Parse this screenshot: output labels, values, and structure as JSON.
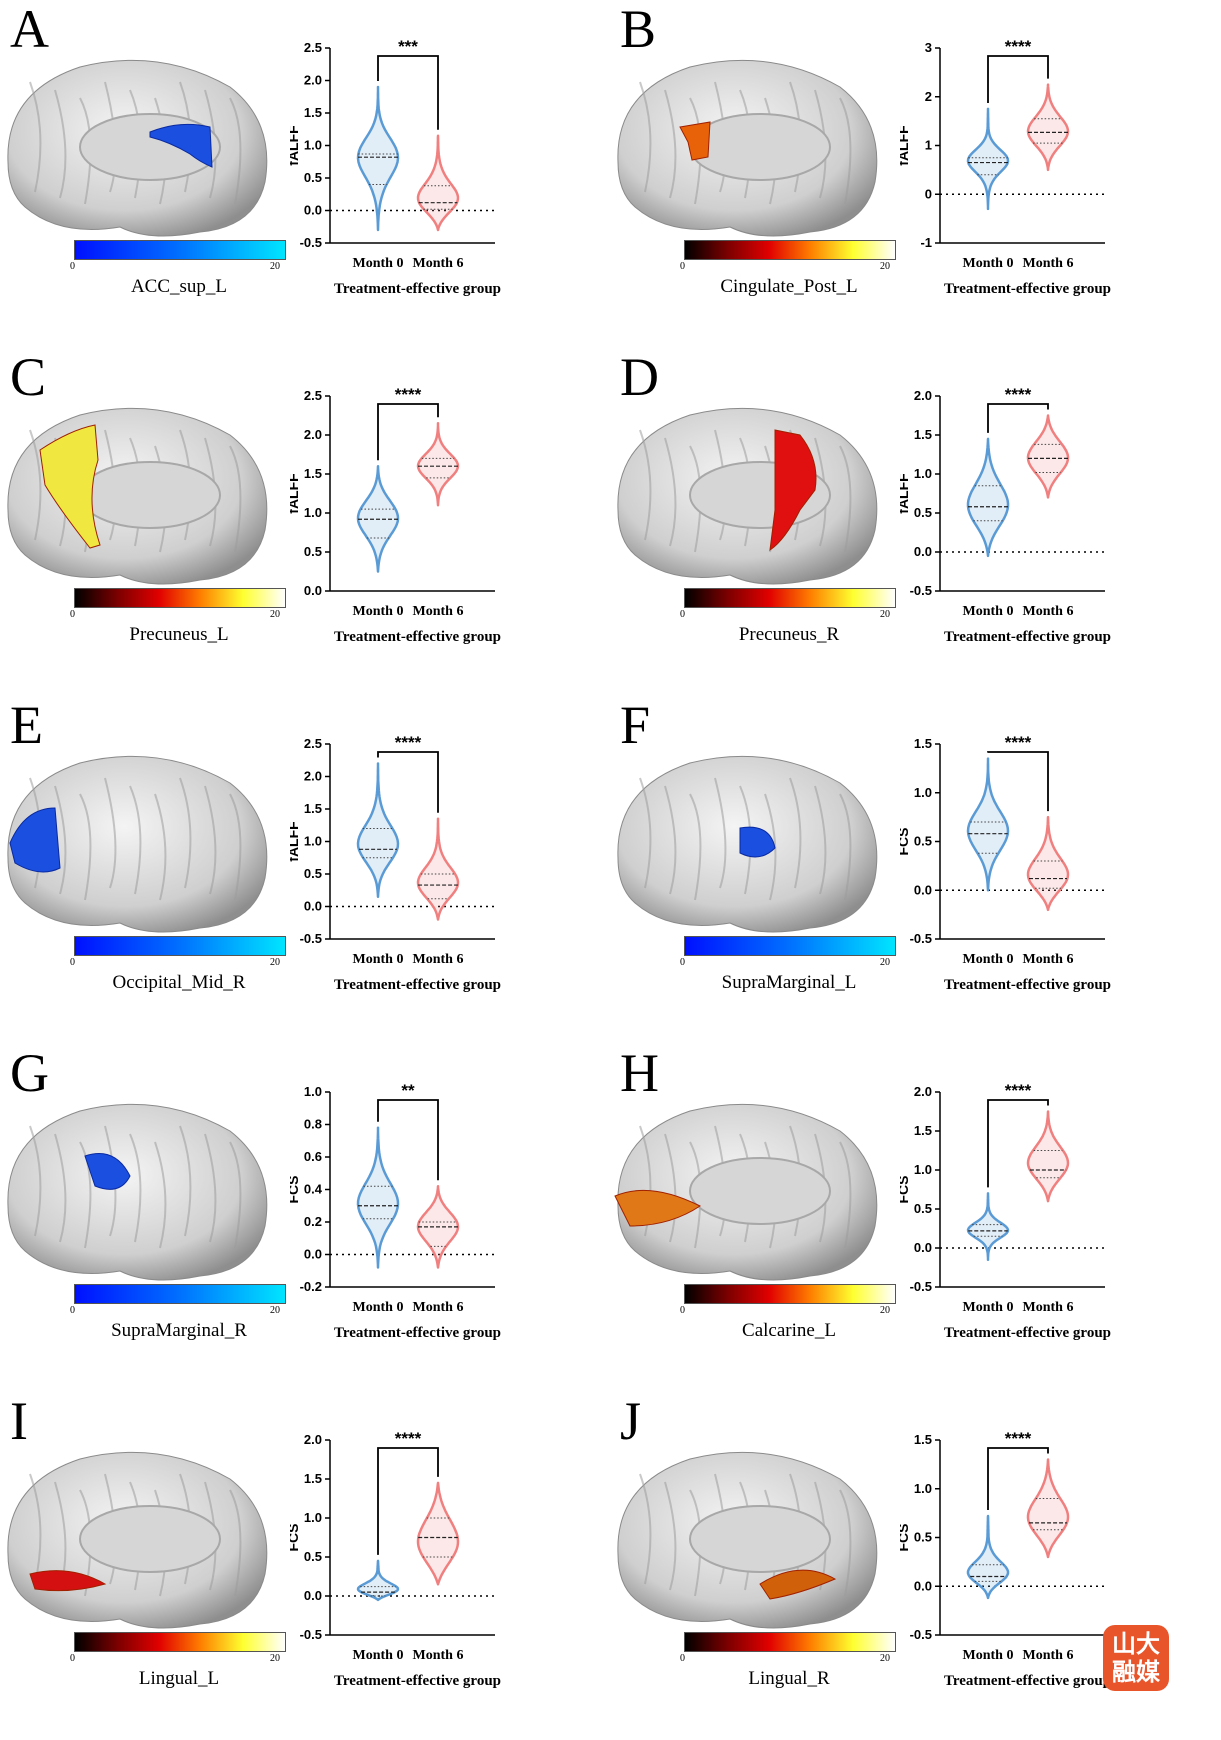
{
  "chart_data": [
    {
      "panel": "A",
      "type": "violin",
      "region_label": "ACC_sup_L",
      "colorbar": {
        "min": "0",
        "max": "20",
        "scheme": "blue"
      },
      "ylabel": "fALFF",
      "xlabel": "Treatment-effective group",
      "categories": [
        "Month 0",
        "Month 6"
      ],
      "yticks": [
        "-0.5",
        "0.0",
        "0.5",
        "1.0",
        "1.5",
        "2.0",
        "2.5"
      ],
      "ylim": [
        -0.5,
        2.5
      ],
      "significance": "***",
      "series": [
        {
          "median": 0.82,
          "q1": 0.4,
          "q3": 0.87,
          "min": -0.3,
          "max": 1.9,
          "mode": 0.85
        },
        {
          "median": 0.12,
          "q1": 0.02,
          "q3": 0.38,
          "min": -0.3,
          "max": 1.15,
          "mode": 0.1
        }
      ]
    },
    {
      "panel": "B",
      "type": "violin",
      "region_label": "Cingulate_Post_L",
      "colorbar": {
        "min": "0",
        "max": "20",
        "scheme": "hot"
      },
      "ylabel": "fALFF",
      "xlabel": "Treatment-effective group",
      "categories": [
        "Month 0",
        "Month 6"
      ],
      "yticks": [
        "-1",
        "0",
        "1",
        "2",
        "3"
      ],
      "ylim": [
        -1,
        3
      ],
      "significance": "****",
      "series": [
        {
          "median": 0.65,
          "q1": 0.4,
          "q3": 0.75,
          "min": -0.3,
          "max": 1.75,
          "mode": 0.7
        },
        {
          "median": 1.27,
          "q1": 1.05,
          "q3": 1.55,
          "min": 0.5,
          "max": 2.25,
          "mode": 1.25
        }
      ]
    },
    {
      "panel": "C",
      "type": "violin",
      "region_label": "Precuneus_L",
      "colorbar": {
        "min": "0",
        "max": "20",
        "scheme": "hot"
      },
      "ylabel": "fALFF",
      "xlabel": "Treatment-effective group",
      "categories": [
        "Month 0",
        "Month 6"
      ],
      "yticks": [
        "0.0",
        "0.5",
        "1.0",
        "1.5",
        "2.0",
        "2.5"
      ],
      "ylim": [
        0,
        2.5
      ],
      "significance": "****",
      "series": [
        {
          "median": 0.92,
          "q1": 0.68,
          "q3": 1.05,
          "min": 0.25,
          "max": 1.6,
          "mode": 0.95
        },
        {
          "median": 1.6,
          "q1": 1.45,
          "q3": 1.7,
          "min": 1.1,
          "max": 2.15,
          "mode": 1.6
        }
      ]
    },
    {
      "panel": "D",
      "type": "violin",
      "region_label": "Precuneus_R",
      "colorbar": {
        "min": "0",
        "max": "20",
        "scheme": "hot"
      },
      "ylabel": "fALFF",
      "xlabel": "Treatment-effective group",
      "categories": [
        "Month 0",
        "Month 6"
      ],
      "yticks": [
        "-0.5",
        "0.0",
        "0.5",
        "1.0",
        "1.5",
        "2.0"
      ],
      "ylim": [
        -0.5,
        2
      ],
      "significance": "****",
      "series": [
        {
          "median": 0.58,
          "q1": 0.4,
          "q3": 0.85,
          "min": -0.05,
          "max": 1.45,
          "mode": 0.55
        },
        {
          "median": 1.2,
          "q1": 1.02,
          "q3": 1.38,
          "min": 0.7,
          "max": 1.75,
          "mode": 1.2
        }
      ]
    },
    {
      "panel": "E",
      "type": "violin",
      "region_label": "Occipital_Mid_R",
      "colorbar": {
        "min": "0",
        "max": "20",
        "scheme": "blue"
      },
      "ylabel": "fALFF",
      "xlabel": "Treatment-effective group",
      "categories": [
        "Month 0",
        "Month 6"
      ],
      "yticks": [
        "-0.5",
        "0.0",
        "0.5",
        "1.0",
        "1.5",
        "2.0",
        "2.5"
      ],
      "ylim": [
        -0.5,
        2.5
      ],
      "significance": "****",
      "series": [
        {
          "median": 0.88,
          "q1": 0.75,
          "q3": 1.2,
          "min": 0.15,
          "max": 2.2,
          "mode": 0.9
        },
        {
          "median": 0.33,
          "q1": 0.12,
          "q3": 0.5,
          "min": -0.2,
          "max": 1.35,
          "mode": 0.3
        }
      ]
    },
    {
      "panel": "F",
      "type": "violin",
      "region_label": "SupraMarginal_L",
      "colorbar": {
        "min": "0",
        "max": "20",
        "scheme": "blue"
      },
      "ylabel": "FCS",
      "xlabel": "Treatment-effective group",
      "categories": [
        "Month 0",
        "Month 6"
      ],
      "yticks": [
        "-0.5",
        "0.0",
        "0.5",
        "1.0",
        "1.5"
      ],
      "ylim": [
        -0.5,
        1.5
      ],
      "significance": "****",
      "series": [
        {
          "median": 0.58,
          "q1": 0.38,
          "q3": 0.7,
          "min": 0.0,
          "max": 1.35,
          "mode": 0.6
        },
        {
          "median": 0.12,
          "q1": 0.02,
          "q3": 0.3,
          "min": -0.2,
          "max": 0.75,
          "mode": 0.1
        }
      ]
    },
    {
      "panel": "G",
      "type": "violin",
      "region_label": "SupraMarginal_R",
      "colorbar": {
        "min": "0",
        "max": "20",
        "scheme": "blue"
      },
      "ylabel": "FCS",
      "xlabel": "Treatment-effective group",
      "categories": [
        "Month 0",
        "Month 6"
      ],
      "yticks": [
        "-0.2",
        "0.0",
        "0.2",
        "0.4",
        "0.6",
        "0.8",
        "1.0"
      ],
      "ylim": [
        -0.2,
        1
      ],
      "significance": "**",
      "series": [
        {
          "median": 0.3,
          "q1": 0.22,
          "q3": 0.42,
          "min": -0.08,
          "max": 0.78,
          "mode": 0.3
        },
        {
          "median": 0.17,
          "q1": 0.05,
          "q3": 0.2,
          "min": -0.08,
          "max": 0.42,
          "mode": 0.18
        }
      ]
    },
    {
      "panel": "H",
      "type": "violin",
      "region_label": "Calcarine_L",
      "colorbar": {
        "min": "0",
        "max": "20",
        "scheme": "hot"
      },
      "ylabel": "FCS",
      "xlabel": "Treatment-effective group",
      "categories": [
        "Month 0",
        "Month 6"
      ],
      "yticks": [
        "-0.5",
        "0.0",
        "0.5",
        "1.0",
        "1.5",
        "2.0"
      ],
      "ylim": [
        -0.5,
        2
      ],
      "significance": "****",
      "series": [
        {
          "median": 0.22,
          "q1": 0.15,
          "q3": 0.3,
          "min": -0.15,
          "max": 0.7,
          "mode": 0.22
        },
        {
          "median": 1.0,
          "q1": 0.9,
          "q3": 1.25,
          "min": 0.6,
          "max": 1.75,
          "mode": 1.05
        }
      ]
    },
    {
      "panel": "I",
      "type": "violin",
      "region_label": "Lingual_L",
      "colorbar": {
        "min": "0",
        "max": "20",
        "scheme": "hot"
      },
      "ylabel": "FCS",
      "xlabel": "Treatment-effective group",
      "categories": [
        "Month 0",
        "Month 6"
      ],
      "yticks": [
        "-0.5",
        "0.0",
        "0.5",
        "1.0",
        "1.5",
        "2.0"
      ],
      "ylim": [
        -0.5,
        2
      ],
      "significance": "****",
      "series": [
        {
          "median": 0.05,
          "q1": 0.0,
          "q3": 0.12,
          "min": -0.05,
          "max": 0.45,
          "mode": 0.05
        },
        {
          "median": 0.75,
          "q1": 0.5,
          "q3": 1.0,
          "min": 0.15,
          "max": 1.45,
          "mode": 0.6
        }
      ]
    },
    {
      "panel": "J",
      "type": "violin",
      "region_label": "Lingual_R",
      "colorbar": {
        "min": "0",
        "max": "20",
        "scheme": "hot"
      },
      "ylabel": "FCS",
      "xlabel": "Treatment-effective group",
      "categories": [
        "Month 0",
        "Month 6"
      ],
      "yticks": [
        "-0.5",
        "0.0",
        "0.5",
        "1.0",
        "1.5"
      ],
      "ylim": [
        -0.5,
        1.5
      ],
      "significance": "****",
      "series": [
        {
          "median": 0.1,
          "q1": 0.05,
          "q3": 0.22,
          "min": -0.12,
          "max": 0.72,
          "mode": 0.1
        },
        {
          "median": 0.65,
          "q1": 0.58,
          "q3": 0.9,
          "min": 0.3,
          "max": 1.3,
          "mode": 0.65
        }
      ]
    }
  ],
  "series_colors": [
    "#5b9bd5",
    "#f08080"
  ],
  "watermark": {
    "text": "山大融媒"
  }
}
